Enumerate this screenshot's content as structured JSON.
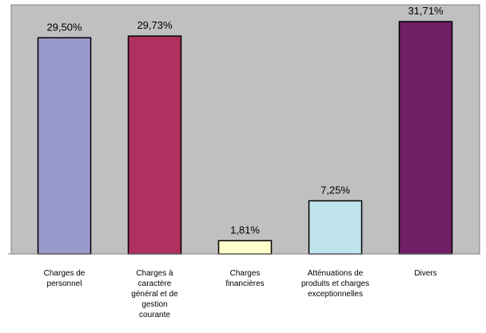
{
  "colors": {
    "plot_background": "#c0c0c0",
    "bar_outline": "#000000",
    "axis_line": "#808080"
  },
  "chart_data": {
    "type": "bar",
    "title": "",
    "xlabel": "",
    "ylabel": "",
    "ylim": [
      0,
      34
    ],
    "grid": false,
    "legend": "none",
    "categories": [
      "Charges de personnel",
      "Charges à caractère général et de gestion courante",
      "Charges financières",
      "Atténuations de produits et charges exceptionnelles",
      "Divers"
    ],
    "category_label_lines": [
      [
        "Charges de",
        "personnel"
      ],
      [
        "Charges à",
        "caractère",
        "général et de",
        "gestion",
        "courante"
      ],
      [
        "Charges",
        "financières"
      ],
      [
        "Atténuations de",
        "produits et charges",
        "exceptionnelles"
      ],
      [
        "Divers"
      ]
    ],
    "values": [
      29.5,
      29.73,
      1.81,
      7.25,
      31.71
    ],
    "data_labels": [
      "29,50%",
      "29,73%",
      "1,81%",
      "7,25%",
      "31,71%"
    ],
    "bar_colors": [
      "#9999cc",
      "#b03060",
      "#ffffcc",
      "#c0e4ec",
      "#6e1f66"
    ]
  }
}
